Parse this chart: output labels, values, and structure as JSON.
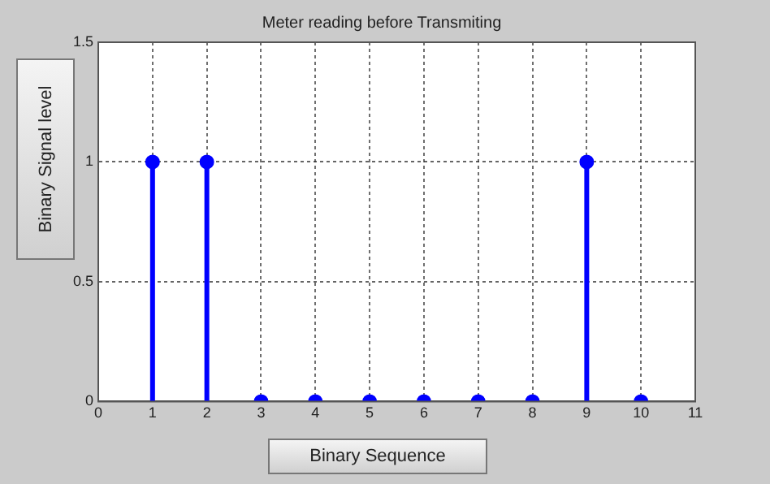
{
  "chart_data": {
    "type": "lollipop",
    "title": "Meter reading before Transmiting",
    "xlabel": "Binary Sequence",
    "ylabel": "Binary Signal level",
    "x": [
      1,
      2,
      3,
      4,
      5,
      6,
      7,
      8,
      9,
      10
    ],
    "values": [
      1,
      1,
      0,
      0,
      0,
      0,
      0,
      0,
      1,
      0
    ],
    "color": "#0000ff",
    "marker": "circle",
    "grid": true,
    "legend": false,
    "xlim": [
      0,
      11
    ],
    "xticks": [
      0,
      1,
      2,
      3,
      4,
      5,
      6,
      7,
      8,
      9,
      10,
      11
    ],
    "ylim": [
      0,
      1.5
    ],
    "yticks": [
      0,
      0.5,
      1,
      1.5
    ]
  }
}
